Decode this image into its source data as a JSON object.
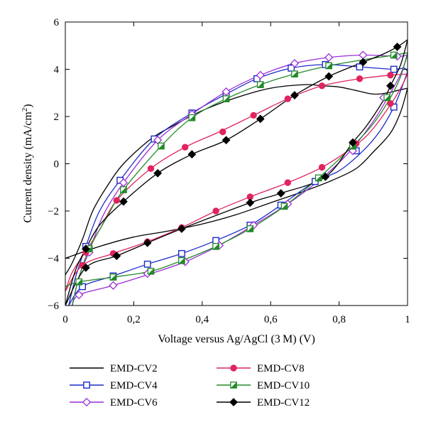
{
  "chart_data": {
    "type": "line",
    "title": "",
    "xlabel": "Voltage versus Ag/AgCl (3 M) (V)",
    "ylabel_main": "Current density (mA/cm",
    "ylabel_sup": "2",
    "ylabel_close": ")",
    "xlim": [
      0,
      1
    ],
    "ylim": [
      -6,
      6
    ],
    "x_ticks": [
      0,
      0.2,
      0.4,
      0.6,
      0.8,
      1
    ],
    "x_tick_labels": [
      "0",
      "0,2",
      "0,4",
      "0,6",
      "0,8",
      "1"
    ],
    "y_ticks": [
      -6,
      -4,
      -2,
      0,
      2,
      4,
      6
    ],
    "y_tick_labels": [
      "−6",
      "−4",
      "−2",
      "0",
      "2",
      "4",
      "6"
    ],
    "grid": false,
    "legend_position": "bottom",
    "series": [
      {
        "name": "EMD-CV2",
        "color": "#000000",
        "marker": "none",
        "upper": [
          [
            0.0,
            -4.7
          ],
          [
            0.02,
            -4.2
          ],
          [
            0.05,
            -3.2
          ],
          [
            0.08,
            -2.0
          ],
          [
            0.12,
            -1.0
          ],
          [
            0.17,
            0.0
          ],
          [
            0.25,
            1.05
          ],
          [
            0.32,
            1.65
          ],
          [
            0.4,
            2.25
          ],
          [
            0.5,
            2.8
          ],
          [
            0.6,
            3.2
          ],
          [
            0.7,
            3.35
          ],
          [
            0.75,
            3.3
          ],
          [
            0.8,
            3.25
          ],
          [
            0.85,
            3.1
          ],
          [
            0.9,
            2.95
          ],
          [
            0.94,
            3.0
          ],
          [
            0.97,
            3.1
          ],
          [
            1.0,
            3.2
          ]
        ],
        "lower": [
          [
            1.0,
            3.2
          ],
          [
            0.98,
            2.2
          ],
          [
            0.95,
            1.3
          ],
          [
            0.9,
            0.5
          ],
          [
            0.85,
            -0.2
          ],
          [
            0.78,
            -0.7
          ],
          [
            0.7,
            -1.15
          ],
          [
            0.6,
            -1.65
          ],
          [
            0.5,
            -2.15
          ],
          [
            0.4,
            -2.55
          ],
          [
            0.3,
            -2.85
          ],
          [
            0.2,
            -3.1
          ],
          [
            0.1,
            -3.5
          ],
          [
            0.0,
            -4.0
          ]
        ],
        "markers": []
      },
      {
        "name": "EMD-CV4",
        "color": "#1c2cc8",
        "marker": "square-open",
        "upper": [
          [
            0.01,
            -6.0
          ],
          [
            0.03,
            -4.8
          ],
          [
            0.06,
            -3.5
          ],
          [
            0.1,
            -2.0
          ],
          [
            0.16,
            -0.7
          ],
          [
            0.26,
            1.05
          ],
          [
            0.37,
            2.15
          ],
          [
            0.47,
            2.95
          ],
          [
            0.56,
            3.6
          ],
          [
            0.66,
            4.05
          ],
          [
            0.76,
            4.2
          ],
          [
            0.86,
            4.1
          ],
          [
            0.96,
            4.0
          ],
          [
            0.99,
            4.05
          ],
          [
            1.0,
            3.9
          ]
        ],
        "lower": [
          [
            1.0,
            3.9
          ],
          [
            0.98,
            3.1
          ],
          [
            0.96,
            2.4
          ],
          [
            0.92,
            1.4
          ],
          [
            0.87,
            0.55
          ],
          [
            0.8,
            -0.3
          ],
          [
            0.73,
            -0.75
          ],
          [
            0.63,
            -1.75
          ],
          [
            0.54,
            -2.6
          ],
          [
            0.44,
            -3.25
          ],
          [
            0.34,
            -3.8
          ],
          [
            0.24,
            -4.25
          ],
          [
            0.14,
            -4.75
          ],
          [
            0.05,
            -5.2
          ],
          [
            0.01,
            -6.0
          ]
        ],
        "markers": [
          [
            0.06,
            -3.5
          ],
          [
            0.16,
            -0.7
          ],
          [
            0.26,
            1.05
          ],
          [
            0.37,
            2.15
          ],
          [
            0.47,
            2.95
          ],
          [
            0.56,
            3.6
          ],
          [
            0.66,
            4.05
          ],
          [
            0.76,
            4.2
          ],
          [
            0.86,
            4.1
          ],
          [
            0.96,
            4.0
          ],
          [
            0.96,
            2.4
          ],
          [
            0.85,
            0.55
          ],
          [
            0.73,
            -0.75
          ],
          [
            0.63,
            -1.75
          ],
          [
            0.54,
            -2.6
          ],
          [
            0.44,
            -3.25
          ],
          [
            0.34,
            -3.8
          ],
          [
            0.24,
            -4.25
          ],
          [
            0.14,
            -4.75
          ],
          [
            0.05,
            -5.2
          ]
        ]
      },
      {
        "name": "EMD-CV6",
        "color": "#9b2fd6",
        "marker": "diamond-open",
        "upper": [
          [
            0.02,
            -6.0
          ],
          [
            0.04,
            -4.8
          ],
          [
            0.07,
            -3.7
          ],
          [
            0.11,
            -2.2
          ],
          [
            0.17,
            -0.8
          ],
          [
            0.27,
            1.0
          ],
          [
            0.37,
            2.1
          ],
          [
            0.47,
            3.05
          ],
          [
            0.57,
            3.75
          ],
          [
            0.67,
            4.25
          ],
          [
            0.77,
            4.5
          ],
          [
            0.87,
            4.6
          ],
          [
            0.97,
            4.55
          ],
          [
            1.0,
            4.6
          ]
        ],
        "lower": [
          [
            1.0,
            4.6
          ],
          [
            0.98,
            3.8
          ],
          [
            0.95,
            3.0
          ],
          [
            0.9,
            1.8
          ],
          [
            0.83,
            0.5
          ],
          [
            0.75,
            -0.6
          ],
          [
            0.65,
            -1.7
          ],
          [
            0.55,
            -2.6
          ],
          [
            0.45,
            -3.45
          ],
          [
            0.35,
            -4.15
          ],
          [
            0.25,
            -4.65
          ],
          [
            0.14,
            -5.15
          ],
          [
            0.04,
            -5.55
          ],
          [
            0.02,
            -6.0
          ]
        ],
        "markers": [
          [
            0.07,
            -3.75
          ],
          [
            0.17,
            -0.8
          ],
          [
            0.27,
            1.0
          ],
          [
            0.37,
            2.1
          ],
          [
            0.47,
            3.05
          ],
          [
            0.57,
            3.75
          ],
          [
            0.67,
            4.25
          ],
          [
            0.77,
            4.5
          ],
          [
            0.87,
            4.6
          ],
          [
            0.97,
            4.55
          ],
          [
            0.93,
            2.8
          ],
          [
            0.84,
            0.55
          ],
          [
            0.65,
            -1.7
          ],
          [
            0.55,
            -2.6
          ],
          [
            0.45,
            -3.45
          ],
          [
            0.35,
            -4.15
          ],
          [
            0.24,
            -4.65
          ],
          [
            0.14,
            -5.15
          ],
          [
            0.04,
            -5.55
          ]
        ]
      },
      {
        "name": "EMD-CV8",
        "color": "#e0245e",
        "marker": "circle-filled",
        "upper": [
          [
            0.0,
            -5.4
          ],
          [
            0.02,
            -4.6
          ],
          [
            0.06,
            -3.7
          ],
          [
            0.1,
            -2.8
          ],
          [
            0.15,
            -1.55
          ],
          [
            0.25,
            -0.2
          ],
          [
            0.35,
            0.7
          ],
          [
            0.45,
            1.35
          ],
          [
            0.55,
            2.05
          ],
          [
            0.65,
            2.75
          ],
          [
            0.75,
            3.3
          ],
          [
            0.86,
            3.6
          ],
          [
            0.95,
            3.75
          ],
          [
            1.0,
            3.8
          ]
        ],
        "lower": [
          [
            1.0,
            3.8
          ],
          [
            0.98,
            3.2
          ],
          [
            0.95,
            2.5
          ],
          [
            0.9,
            1.5
          ],
          [
            0.85,
            0.8
          ],
          [
            0.75,
            -0.15
          ],
          [
            0.65,
            -0.8
          ],
          [
            0.54,
            -1.4
          ],
          [
            0.44,
            -2.0
          ],
          [
            0.34,
            -2.7
          ],
          [
            0.24,
            -3.3
          ],
          [
            0.14,
            -3.8
          ],
          [
            0.05,
            -4.3
          ],
          [
            0.0,
            -5.4
          ]
        ],
        "markers": [
          [
            0.06,
            -3.75
          ],
          [
            0.15,
            -1.55
          ],
          [
            0.25,
            -0.2
          ],
          [
            0.35,
            0.7
          ],
          [
            0.46,
            1.35
          ],
          [
            0.55,
            2.05
          ],
          [
            0.65,
            2.75
          ],
          [
            0.75,
            3.3
          ],
          [
            0.86,
            3.6
          ],
          [
            0.95,
            3.75
          ],
          [
            0.95,
            2.55
          ],
          [
            0.85,
            0.85
          ],
          [
            0.75,
            -0.15
          ],
          [
            0.65,
            -0.8
          ],
          [
            0.54,
            -1.4
          ],
          [
            0.44,
            -2.0
          ],
          [
            0.34,
            -2.7
          ],
          [
            0.24,
            -3.3
          ],
          [
            0.14,
            -3.8
          ],
          [
            0.05,
            -4.3
          ]
        ]
      },
      {
        "name": "EMD-CV10",
        "color": "#238a2a",
        "marker": "square-half",
        "upper": [
          [
            0.02,
            -6.0
          ],
          [
            0.04,
            -4.8
          ],
          [
            0.07,
            -3.6
          ],
          [
            0.12,
            -2.3
          ],
          [
            0.17,
            -1.1
          ],
          [
            0.28,
            0.75
          ],
          [
            0.37,
            1.95
          ],
          [
            0.47,
            2.75
          ],
          [
            0.57,
            3.35
          ],
          [
            0.67,
            3.8
          ],
          [
            0.77,
            4.15
          ],
          [
            0.87,
            4.4
          ],
          [
            0.96,
            4.6
          ],
          [
            1.0,
            4.7
          ]
        ],
        "lower": [
          [
            1.0,
            4.7
          ],
          [
            0.98,
            3.7
          ],
          [
            0.95,
            2.8
          ],
          [
            0.9,
            1.7
          ],
          [
            0.84,
            0.75
          ],
          [
            0.74,
            -0.6
          ],
          [
            0.64,
            -1.8
          ],
          [
            0.54,
            -2.75
          ],
          [
            0.44,
            -3.5
          ],
          [
            0.34,
            -4.1
          ],
          [
            0.25,
            -4.55
          ],
          [
            0.14,
            -4.8
          ],
          [
            0.04,
            -5.0
          ],
          [
            0.0,
            -5.2
          ]
        ],
        "markers": [
          [
            0.07,
            -3.6
          ],
          [
            0.17,
            -1.1
          ],
          [
            0.28,
            0.75
          ],
          [
            0.37,
            1.95
          ],
          [
            0.47,
            2.75
          ],
          [
            0.57,
            3.35
          ],
          [
            0.67,
            3.8
          ],
          [
            0.77,
            4.15
          ],
          [
            0.96,
            4.6
          ],
          [
            0.94,
            2.8
          ],
          [
            0.84,
            0.75
          ],
          [
            0.74,
            -0.6
          ],
          [
            0.64,
            -1.8
          ],
          [
            0.54,
            -2.75
          ],
          [
            0.44,
            -3.5
          ],
          [
            0.34,
            -4.1
          ],
          [
            0.25,
            -4.55
          ],
          [
            0.14,
            -4.8
          ],
          [
            0.04,
            -5.0
          ]
        ]
      },
      {
        "name": "EMD-CV12",
        "color": "#000000",
        "marker": "diamond-filled",
        "upper": [
          [
            0.0,
            -6.0
          ],
          [
            0.03,
            -4.5
          ],
          [
            0.06,
            -3.6
          ],
          [
            0.1,
            -2.6
          ],
          [
            0.17,
            -1.6
          ],
          [
            0.27,
            -0.4
          ],
          [
            0.37,
            0.4
          ],
          [
            0.47,
            1.0
          ],
          [
            0.57,
            1.9
          ],
          [
            0.67,
            2.9
          ],
          [
            0.77,
            3.7
          ],
          [
            0.87,
            4.3
          ],
          [
            0.93,
            4.65
          ],
          [
            0.97,
            4.95
          ],
          [
            1.0,
            5.25
          ]
        ],
        "lower": [
          [
            1.0,
            5.25
          ],
          [
            0.98,
            4.2
          ],
          [
            0.95,
            3.3
          ],
          [
            0.93,
            2.7
          ],
          [
            0.88,
            1.6
          ],
          [
            0.84,
            0.9
          ],
          [
            0.76,
            -0.55
          ],
          [
            0.63,
            -1.25
          ],
          [
            0.54,
            -1.65
          ],
          [
            0.34,
            -2.75
          ],
          [
            0.24,
            -3.35
          ],
          [
            0.15,
            -3.9
          ],
          [
            0.06,
            -4.4
          ],
          [
            0.0,
            -6.0
          ]
        ],
        "markers": [
          [
            0.06,
            -3.6
          ],
          [
            0.17,
            -1.6
          ],
          [
            0.27,
            -0.4
          ],
          [
            0.37,
            0.4
          ],
          [
            0.47,
            1.0
          ],
          [
            0.57,
            1.9
          ],
          [
            0.67,
            2.9
          ],
          [
            0.77,
            3.7
          ],
          [
            0.87,
            4.3
          ],
          [
            0.97,
            4.95
          ],
          [
            0.95,
            3.3
          ],
          [
            0.84,
            0.9
          ],
          [
            0.76,
            -0.55
          ],
          [
            0.63,
            -1.25
          ],
          [
            0.54,
            -1.65
          ],
          [
            0.34,
            -2.75
          ],
          [
            0.24,
            -3.35
          ],
          [
            0.15,
            -3.9
          ],
          [
            0.06,
            -4.4
          ]
        ]
      }
    ]
  }
}
